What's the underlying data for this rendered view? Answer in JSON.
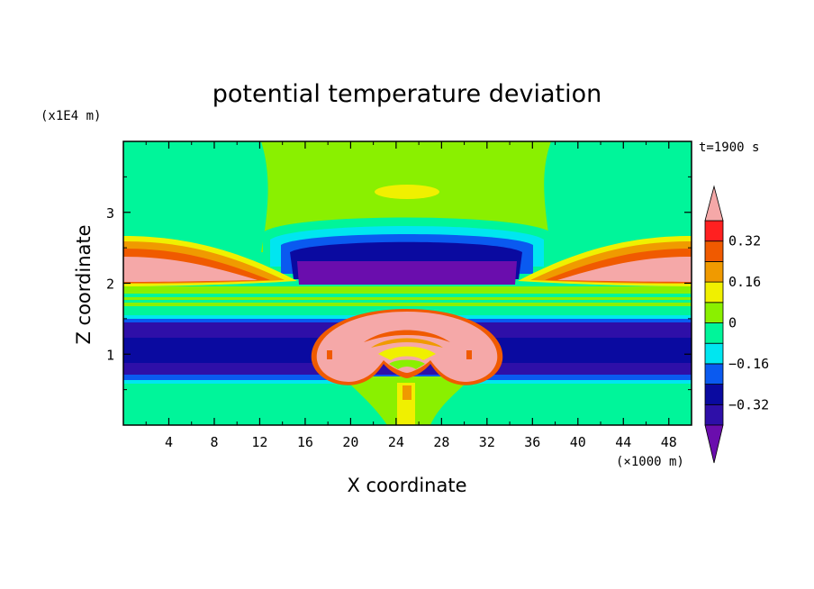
{
  "chart_data": {
    "type": "heatmap",
    "title": "potential temperature deviation",
    "xlabel": "X coordinate",
    "ylabel": "Z coordinate",
    "x_unit": "(×1000 m)",
    "y_unit": "(x1E4 m)",
    "time_label": "t=1900 s",
    "xlim": [
      0,
      50
    ],
    "ylim": [
      0,
      4
    ],
    "x_ticks": [
      4,
      8,
      12,
      16,
      20,
      24,
      28,
      32,
      36,
      40,
      44,
      48
    ],
    "x_tick_labels": [
      "4",
      "8",
      "12",
      "16",
      "20",
      "24",
      "28",
      "32",
      "36",
      "40",
      "44",
      "48"
    ],
    "y_ticks": [
      1,
      2,
      3
    ],
    "y_tick_labels": [
      "1",
      "2",
      "3"
    ],
    "colorbar": {
      "levels": [
        -0.4,
        -0.32,
        -0.24,
        -0.16,
        -0.08,
        0,
        0.08,
        0.16,
        0.24,
        0.32,
        0.4
      ],
      "labeled_levels": [
        -0.32,
        -0.16,
        0,
        0.16,
        0.32
      ],
      "labels": [
        "−0.32",
        "−0.16",
        "0",
        "0.16",
        "0.32"
      ],
      "colors": [
        "#6a0dad",
        "#2e0fa8",
        "#0a0aa0",
        "#0a5af0",
        "#00e6f0",
        "#00f59a",
        "#8af000",
        "#f0f000",
        "#f09a00",
        "#f05a00",
        "#ff2020",
        "#f5a8a8"
      ],
      "extend": "both"
    }
  }
}
